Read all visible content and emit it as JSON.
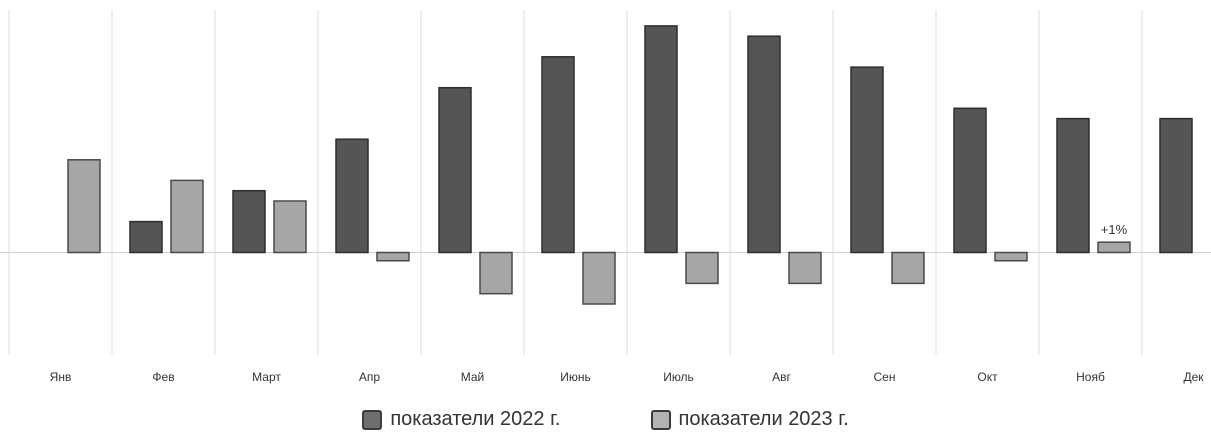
{
  "chart_data": {
    "type": "bar",
    "categories": [
      "Янв",
      "Фев",
      "Март",
      "Апр",
      "Май",
      "Июнь",
      "Июль",
      "Авг",
      "Сен",
      "Окт",
      "Нояб",
      "Дек"
    ],
    "series": [
      {
        "name": "показатели 2022 г.",
        "color": "#555555",
        "values": [
          null,
          3,
          6,
          11,
          16,
          19,
          22,
          21,
          18,
          14,
          13,
          13
        ]
      },
      {
        "name": "показатели 2023 г.",
        "color": "#a6a6a6",
        "values": [
          9,
          7,
          5,
          -0.8,
          -4,
          -5,
          -3,
          -3,
          -3,
          -0.8,
          1,
          null
        ]
      }
    ],
    "annotations": [
      {
        "category": "Нояб",
        "series": 1,
        "text": "+1%"
      }
    ],
    "ylim": [
      -10,
      22.5
    ],
    "zero_line": true,
    "grid": "vertical",
    "legend_position": "bottom"
  }
}
